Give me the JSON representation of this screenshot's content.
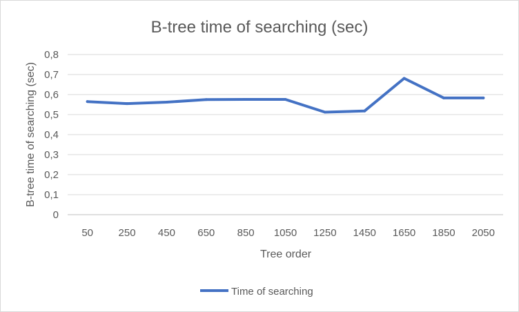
{
  "chart_data": {
    "type": "line",
    "title": "B-tree time of searching (sec)",
    "xlabel": "Tree order",
    "ylabel": "B-tree time of searching (sec)",
    "categories": [
      "50",
      "250",
      "450",
      "650",
      "850",
      "1050",
      "1250",
      "1450",
      "1650",
      "1850",
      "2050"
    ],
    "series": [
      {
        "name": "Time of searching",
        "color": "#4472c4",
        "values": [
          0.565,
          0.555,
          0.562,
          0.575,
          0.576,
          0.576,
          0.512,
          0.518,
          0.681,
          0.583,
          0.583
        ]
      }
    ],
    "ylim": [
      0,
      0.8
    ],
    "yticks": [
      "0",
      "0,1",
      "0,2",
      "0,3",
      "0,4",
      "0,5",
      "0,6",
      "0,7",
      "0,8"
    ],
    "grid": true,
    "legend": "bottom"
  }
}
